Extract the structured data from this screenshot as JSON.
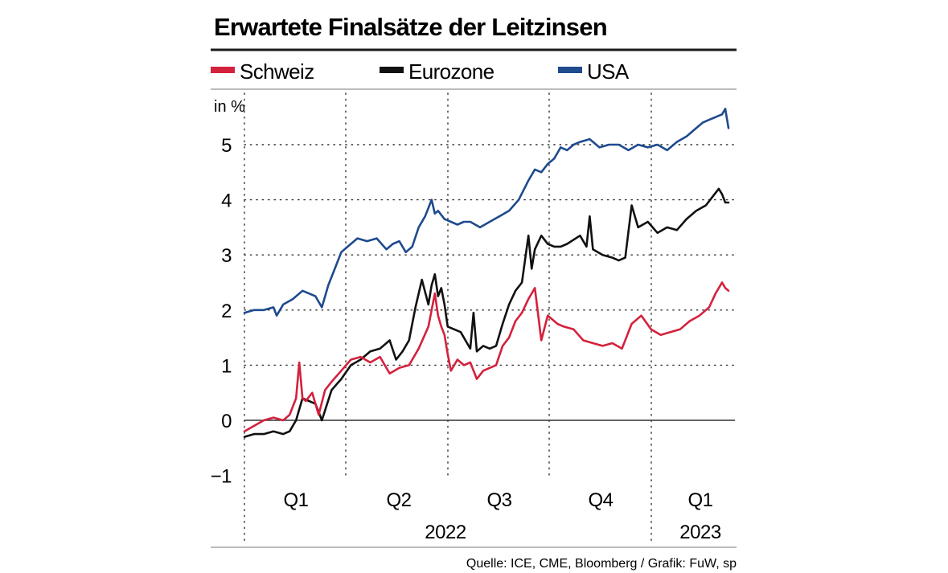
{
  "chart_data": {
    "type": "line",
    "title": "Erwartete Finalsätze der Leitzinsen",
    "ylabel": "in %",
    "ylim": [
      -1,
      6
    ],
    "yticks": [
      "−1",
      "0",
      "1",
      "2",
      "3",
      "4",
      "5"
    ],
    "ytick_values": [
      -1,
      0,
      1,
      2,
      3,
      4,
      5
    ],
    "xlim": [
      0,
      15.1
    ],
    "x_unit": "months since 1 Jan 2022 (approx.)",
    "quarter_labels": [
      "Q1",
      "Q2",
      "Q3",
      "Q4",
      "Q1"
    ],
    "year_labels": [
      "2022",
      "2023"
    ],
    "grid": true,
    "legend_position": "top",
    "series": [
      {
        "name": "Schweiz",
        "color": "#d4213d",
        "x": [
          0.0,
          0.3,
          0.6,
          0.9,
          1.2,
          1.4,
          1.6,
          1.7,
          1.8,
          1.9,
          2.1,
          2.3,
          2.5,
          2.7,
          3.0,
          3.3,
          3.6,
          3.9,
          4.2,
          4.5,
          4.8,
          5.1,
          5.4,
          5.7,
          5.9,
          6.0,
          6.1,
          6.2,
          6.3,
          6.4,
          6.6,
          6.8,
          7.0,
          7.2,
          7.4,
          7.6,
          7.8,
          8.0,
          8.2,
          8.4,
          8.6,
          8.8,
          9.0,
          9.2,
          9.4,
          9.5,
          9.6,
          9.7,
          9.9,
          10.2,
          10.5,
          10.8,
          11.1,
          11.4,
          11.7,
          12.0,
          12.3,
          12.6,
          12.9,
          13.2,
          13.5,
          13.8,
          14.1,
          14.4,
          14.6,
          14.8,
          14.9,
          15.0
        ],
        "values": [
          -0.2,
          -0.1,
          0.0,
          0.05,
          0.0,
          0.1,
          0.4,
          1.05,
          0.4,
          0.35,
          0.5,
          0.1,
          0.55,
          0.7,
          0.9,
          1.1,
          1.15,
          1.05,
          1.15,
          0.85,
          0.95,
          1.0,
          1.3,
          1.7,
          2.3,
          1.9,
          1.7,
          1.55,
          1.2,
          0.9,
          1.1,
          1.0,
          1.05,
          0.75,
          0.9,
          0.95,
          1.0,
          1.35,
          1.5,
          1.8,
          1.95,
          2.2,
          2.4,
          1.45,
          1.9,
          1.85,
          1.8,
          1.75,
          1.7,
          1.65,
          1.45,
          1.4,
          1.35,
          1.4,
          1.3,
          1.75,
          1.9,
          1.65,
          1.55,
          1.6,
          1.65,
          1.8,
          1.9,
          2.05,
          2.3,
          2.5,
          2.4,
          2.35
        ]
      },
      {
        "name": "Eurozone",
        "color": "#111111",
        "x": [
          0.0,
          0.3,
          0.6,
          0.9,
          1.2,
          1.4,
          1.6,
          1.8,
          2.0,
          2.2,
          2.4,
          2.7,
          3.0,
          3.3,
          3.6,
          3.9,
          4.2,
          4.5,
          4.7,
          4.9,
          5.1,
          5.3,
          5.5,
          5.7,
          5.8,
          5.9,
          6.0,
          6.1,
          6.2,
          6.3,
          6.5,
          6.7,
          6.9,
          7.0,
          7.1,
          7.2,
          7.4,
          7.6,
          7.8,
          8.0,
          8.2,
          8.4,
          8.6,
          8.8,
          8.9,
          9.0,
          9.2,
          9.4,
          9.6,
          9.8,
          10.0,
          10.4,
          10.6,
          10.7,
          10.8,
          11.1,
          11.4,
          11.6,
          11.8,
          12.0,
          12.2,
          12.5,
          12.8,
          13.1,
          13.4,
          13.7,
          14.0,
          14.3,
          14.5,
          14.7,
          14.8,
          14.9,
          15.0
        ],
        "values": [
          -0.3,
          -0.25,
          -0.25,
          -0.2,
          -0.25,
          -0.2,
          0.0,
          0.4,
          0.35,
          0.3,
          0.0,
          0.55,
          0.75,
          1.0,
          1.1,
          1.25,
          1.3,
          1.45,
          1.1,
          1.25,
          1.45,
          2.05,
          2.55,
          2.1,
          2.45,
          2.65,
          2.25,
          2.4,
          2.1,
          1.7,
          1.65,
          1.6,
          1.4,
          1.3,
          1.95,
          1.25,
          1.35,
          1.3,
          1.35,
          1.75,
          2.1,
          2.35,
          2.5,
          3.35,
          2.75,
          3.1,
          3.35,
          3.2,
          3.15,
          3.15,
          3.2,
          3.35,
          3.15,
          3.7,
          3.1,
          3.0,
          2.95,
          2.9,
          2.95,
          3.9,
          3.5,
          3.6,
          3.4,
          3.5,
          3.45,
          3.65,
          3.8,
          3.9,
          4.05,
          4.2,
          4.1,
          3.95,
          3.95
        ]
      },
      {
        "name": "USA",
        "color": "#1e4a8e",
        "x": [
          0.0,
          0.3,
          0.6,
          0.9,
          1.0,
          1.2,
          1.5,
          1.8,
          2.0,
          2.2,
          2.4,
          2.6,
          2.8,
          3.0,
          3.2,
          3.5,
          3.8,
          4.1,
          4.4,
          4.6,
          4.8,
          5.0,
          5.2,
          5.4,
          5.6,
          5.8,
          5.9,
          6.0,
          6.2,
          6.4,
          6.6,
          6.8,
          7.0,
          7.3,
          7.6,
          7.9,
          8.2,
          8.5,
          8.8,
          9.0,
          9.2,
          9.4,
          9.6,
          9.8,
          10.0,
          10.2,
          10.4,
          10.7,
          11.0,
          11.3,
          11.6,
          11.9,
          12.2,
          12.5,
          12.8,
          13.1,
          13.4,
          13.7,
          14.0,
          14.2,
          14.4,
          14.6,
          14.8,
          14.9,
          15.0
        ],
        "values": [
          1.95,
          2.0,
          2.0,
          2.05,
          1.9,
          2.1,
          2.2,
          2.35,
          2.3,
          2.25,
          2.05,
          2.45,
          2.75,
          3.05,
          3.15,
          3.3,
          3.25,
          3.3,
          3.1,
          3.2,
          3.25,
          3.05,
          3.15,
          3.5,
          3.7,
          4.0,
          3.75,
          3.8,
          3.65,
          3.6,
          3.55,
          3.6,
          3.6,
          3.5,
          3.6,
          3.7,
          3.8,
          4.0,
          4.35,
          4.55,
          4.5,
          4.65,
          4.75,
          4.95,
          4.9,
          5.0,
          5.05,
          5.1,
          4.95,
          5.0,
          5.0,
          4.9,
          5.0,
          4.95,
          5.0,
          4.9,
          5.05,
          5.15,
          5.3,
          5.4,
          5.45,
          5.5,
          5.55,
          5.65,
          5.3
        ]
      }
    ],
    "source": "Quelle: ICE, CME, Bloomberg / Grafik: FuW, sp"
  }
}
